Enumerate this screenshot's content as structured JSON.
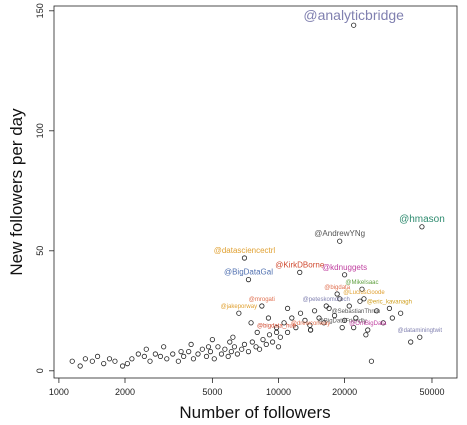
{
  "chart_data": {
    "type": "scatter",
    "title": "",
    "xlabel": "Number of followers",
    "ylabel": "New followers per day",
    "x_scale": "log",
    "xlim": [
      950,
      65000
    ],
    "ylim": [
      -3,
      152
    ],
    "x_ticks": [
      1000,
      2000,
      5000,
      10000,
      20000,
      50000
    ],
    "x_tick_labels": [
      "1000",
      "2000",
      "5000",
      "10000",
      "20000",
      "50000"
    ],
    "y_ticks": [
      0,
      50,
      100,
      150
    ],
    "y_tick_labels": [
      "0",
      "50",
      "100",
      "150"
    ],
    "grid": false,
    "labeled_points": [
      {
        "label": "@analyticbridge",
        "x": 22000,
        "y": 144,
        "color": "#8080b0"
      },
      {
        "label": "@hmason",
        "x": 45000,
        "y": 60,
        "color": "#2e8b6f"
      },
      {
        "label": "@AndrewYNg",
        "x": 19000,
        "y": 54,
        "color": "#555555"
      },
      {
        "label": "@datasciencectrl",
        "x": 7000,
        "y": 47,
        "color": "#e0a030"
      },
      {
        "label": "@KirkDBorne",
        "x": 12500,
        "y": 41,
        "color": "#d04a30"
      },
      {
        "label": "@kdnuggets",
        "x": 20000,
        "y": 40,
        "color": "#c040a0"
      },
      {
        "label": "@BigDataGal",
        "x": 7300,
        "y": 38,
        "color": "#5070b0"
      },
      {
        "label": "@MikeIsaac",
        "x": 24000,
        "y": 34,
        "color": "#60a040"
      },
      {
        "label": "@bigdata",
        "x": 18500,
        "y": 32,
        "color": "#e07050"
      },
      {
        "label": "@LuciusGoode",
        "x": 24500,
        "y": 30,
        "color": "#e0a030"
      },
      {
        "label": "@mrogati",
        "x": 8400,
        "y": 27,
        "color": "#e07050"
      },
      {
        "label": "@eric_kavanagh",
        "x": 32000,
        "y": 26,
        "color": "#d0a020"
      },
      {
        "label": "@peteskomoroch",
        "x": 16500,
        "y": 27,
        "color": "#8080b0"
      },
      {
        "label": "@jakeporway",
        "x": 6600,
        "y": 24,
        "color": "#e0a030"
      },
      {
        "label": "@SebastianThrun",
        "x": 22500,
        "y": 22,
        "color": "#555555"
      },
      {
        "label": "@BigDataFriendly",
        "x": 19500,
        "y": 18,
        "color": "#555555"
      },
      {
        "label": "@OmBigData",
        "x": 25500,
        "y": 17,
        "color": "#c040a0"
      },
      {
        "label": "@drewconway",
        "x": 14000,
        "y": 17,
        "color": "#e07050"
      },
      {
        "label": "@bigdata_hub",
        "x": 9800,
        "y": 16,
        "color": "#d04a30"
      },
      {
        "label": "@dataminingtwit",
        "x": 44000,
        "y": 14,
        "color": "#8080b0"
      }
    ],
    "points": [
      {
        "x": 1150,
        "y": 4
      },
      {
        "x": 1250,
        "y": 2
      },
      {
        "x": 1320,
        "y": 5
      },
      {
        "x": 1420,
        "y": 4
      },
      {
        "x": 1500,
        "y": 6
      },
      {
        "x": 1600,
        "y": 3
      },
      {
        "x": 1700,
        "y": 5
      },
      {
        "x": 1800,
        "y": 4
      },
      {
        "x": 1950,
        "y": 2
      },
      {
        "x": 2050,
        "y": 3
      },
      {
        "x": 2150,
        "y": 5
      },
      {
        "x": 2300,
        "y": 7
      },
      {
        "x": 2450,
        "y": 6
      },
      {
        "x": 2600,
        "y": 4
      },
      {
        "x": 2750,
        "y": 7
      },
      {
        "x": 2900,
        "y": 6
      },
      {
        "x": 3100,
        "y": 5
      },
      {
        "x": 3300,
        "y": 7
      },
      {
        "x": 3500,
        "y": 4
      },
      {
        "x": 3700,
        "y": 6
      },
      {
        "x": 3900,
        "y": 8
      },
      {
        "x": 4100,
        "y": 5
      },
      {
        "x": 4300,
        "y": 7
      },
      {
        "x": 4500,
        "y": 9
      },
      {
        "x": 4700,
        "y": 6
      },
      {
        "x": 4900,
        "y": 8
      },
      {
        "x": 5100,
        "y": 5
      },
      {
        "x": 5300,
        "y": 10
      },
      {
        "x": 5500,
        "y": 7
      },
      {
        "x": 5700,
        "y": 9
      },
      {
        "x": 5900,
        "y": 6
      },
      {
        "x": 6100,
        "y": 8
      },
      {
        "x": 6300,
        "y": 10
      },
      {
        "x": 6500,
        "y": 7
      },
      {
        "x": 6800,
        "y": 9
      },
      {
        "x": 7000,
        "y": 11
      },
      {
        "x": 7300,
        "y": 8
      },
      {
        "x": 7600,
        "y": 12
      },
      {
        "x": 7900,
        "y": 10
      },
      {
        "x": 8200,
        "y": 9
      },
      {
        "x": 8500,
        "y": 13
      },
      {
        "x": 8800,
        "y": 11
      },
      {
        "x": 9100,
        "y": 15
      },
      {
        "x": 9400,
        "y": 12
      },
      {
        "x": 9800,
        "y": 18
      },
      {
        "x": 10200,
        "y": 14
      },
      {
        "x": 10600,
        "y": 20
      },
      {
        "x": 11000,
        "y": 16
      },
      {
        "x": 11500,
        "y": 22
      },
      {
        "x": 12000,
        "y": 18
      },
      {
        "x": 12600,
        "y": 24
      },
      {
        "x": 13200,
        "y": 21
      },
      {
        "x": 13900,
        "y": 19
      },
      {
        "x": 14600,
        "y": 25
      },
      {
        "x": 15300,
        "y": 22
      },
      {
        "x": 16100,
        "y": 20
      },
      {
        "x": 17000,
        "y": 26
      },
      {
        "x": 18000,
        "y": 23
      },
      {
        "x": 19000,
        "y": 30
      },
      {
        "x": 20000,
        "y": 21
      },
      {
        "x": 21000,
        "y": 27
      },
      {
        "x": 22000,
        "y": 18
      },
      {
        "x": 23500,
        "y": 29
      },
      {
        "x": 25000,
        "y": 15
      },
      {
        "x": 26500,
        "y": 4
      },
      {
        "x": 28000,
        "y": 25
      },
      {
        "x": 30000,
        "y": 20
      },
      {
        "x": 33000,
        "y": 22
      },
      {
        "x": 36000,
        "y": 24
      },
      {
        "x": 40000,
        "y": 12
      },
      {
        "x": 5000,
        "y": 13
      },
      {
        "x": 6000,
        "y": 12
      },
      {
        "x": 7500,
        "y": 20
      },
      {
        "x": 9000,
        "y": 22
      },
      {
        "x": 11000,
        "y": 26
      },
      {
        "x": 14000,
        "y": 17
      },
      {
        "x": 3000,
        "y": 10
      },
      {
        "x": 4000,
        "y": 11
      },
      {
        "x": 2500,
        "y": 9
      },
      {
        "x": 8000,
        "y": 16
      },
      {
        "x": 6200,
        "y": 14
      },
      {
        "x": 4800,
        "y": 10
      },
      {
        "x": 3600,
        "y": 8
      },
      {
        "x": 10000,
        "y": 10
      }
    ]
  }
}
